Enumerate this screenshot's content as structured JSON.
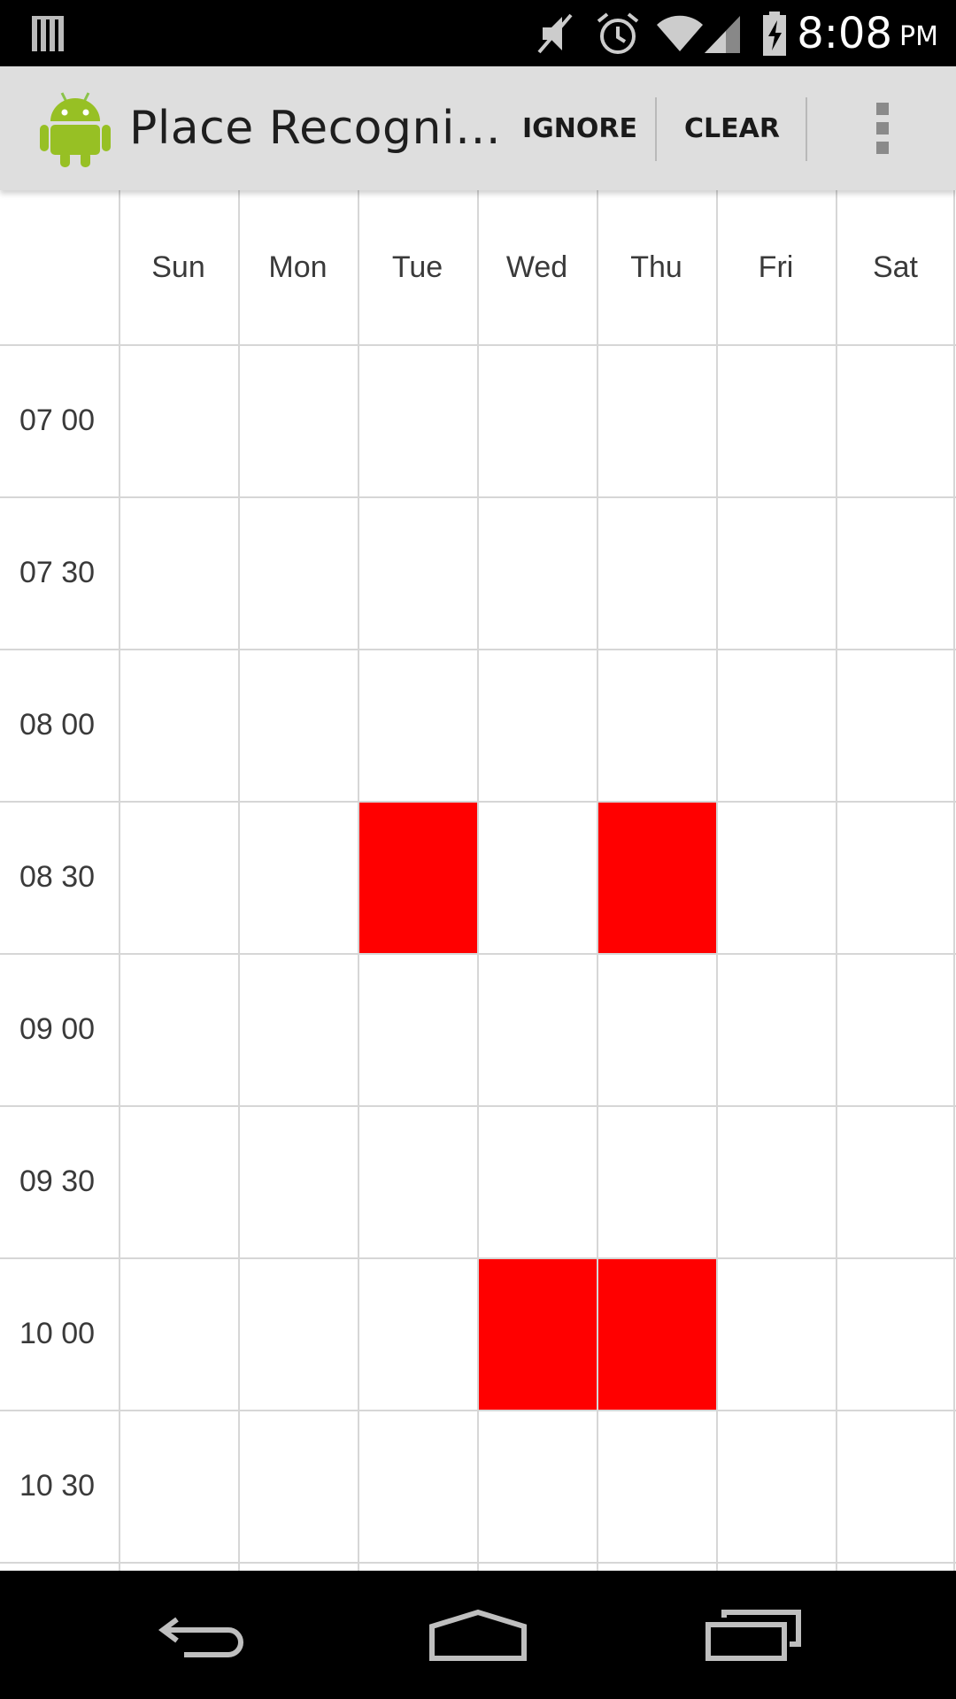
{
  "status_bar": {
    "time": "8:08",
    "ampm": "PM",
    "icons": [
      "notification-bars-icon",
      "mute-icon",
      "alarm-icon",
      "wifi-icon",
      "signal-icon",
      "battery-charging-icon"
    ]
  },
  "action_bar": {
    "title": "Place Recogni…",
    "ignore_label": "IGNORE",
    "clear_label": "CLEAR",
    "overflow_icon": "overflow-menu-icon",
    "app_icon": "android-robot-icon"
  },
  "schedule": {
    "days": [
      "Sun",
      "Mon",
      "Tue",
      "Wed",
      "Thu",
      "Fri",
      "Sat"
    ],
    "times": [
      "07 00",
      "07 30",
      "08 00",
      "08 30",
      "09 00",
      "09 30",
      "10 00",
      "10 30"
    ],
    "highlight_color": "#ff0000",
    "selected_slots": [
      {
        "day": "Tue",
        "time": "08 30"
      },
      {
        "day": "Thu",
        "time": "08 30"
      },
      {
        "day": "Wed",
        "time": "10 00"
      },
      {
        "day": "Thu",
        "time": "10 00"
      }
    ]
  },
  "nav_bar": {
    "back_icon": "back-icon",
    "home_icon": "home-icon",
    "recents_icon": "recent-apps-icon"
  }
}
